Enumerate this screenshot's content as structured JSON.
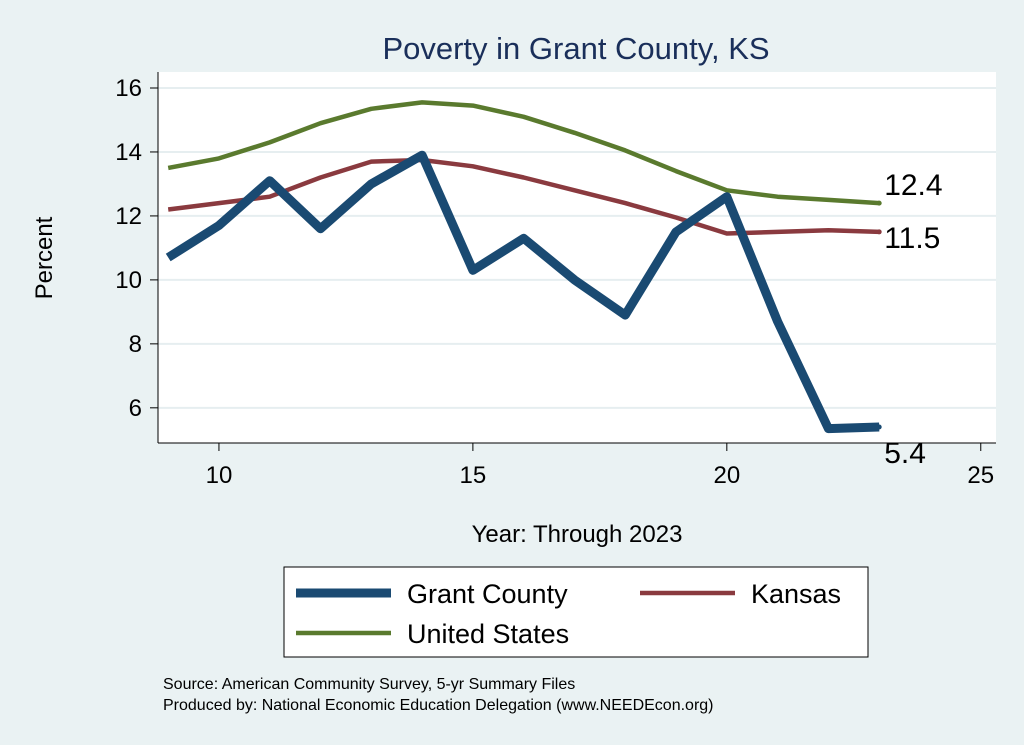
{
  "chart_data": {
    "type": "line",
    "title": "Poverty in Grant County, KS",
    "xlabel": "Year: Through 2023",
    "ylabel": "Percent",
    "xlim": [
      8.8,
      25.3
    ],
    "ylim": [
      4.9,
      16.5
    ],
    "x_ticks": [
      10,
      15,
      20,
      25
    ],
    "y_ticks": [
      6,
      8,
      10,
      12,
      14,
      16
    ],
    "grid": true,
    "legend_position": "bottom",
    "series": [
      {
        "name": "Grant County",
        "color": "#1a4a72",
        "end_label": "5.4",
        "x": [
          9,
          10,
          11,
          12,
          13,
          14,
          15,
          16,
          17,
          18,
          19,
          20,
          21,
          22,
          23
        ],
        "y": [
          10.7,
          11.7,
          13.1,
          11.6,
          13.0,
          13.9,
          10.3,
          11.3,
          10.0,
          8.9,
          11.5,
          12.6,
          8.7,
          5.35,
          5.4
        ]
      },
      {
        "name": "Kansas",
        "color": "#8a3a3f",
        "end_label": "11.5",
        "x": [
          9,
          10,
          11,
          12,
          13,
          14,
          15,
          16,
          17,
          18,
          19,
          20,
          21,
          22,
          23
        ],
        "y": [
          12.2,
          12.4,
          12.6,
          13.2,
          13.7,
          13.75,
          13.55,
          13.2,
          12.8,
          12.4,
          11.95,
          11.45,
          11.5,
          11.55,
          11.5
        ]
      },
      {
        "name": "United States",
        "color": "#5a7a2e",
        "end_label": "12.4",
        "x": [
          9,
          10,
          11,
          12,
          13,
          14,
          15,
          16,
          17,
          18,
          19,
          20,
          21,
          22,
          23
        ],
        "y": [
          13.5,
          13.8,
          14.3,
          14.9,
          15.35,
          15.55,
          15.45,
          15.1,
          14.6,
          14.05,
          13.4,
          12.8,
          12.6,
          12.5,
          12.4
        ]
      }
    ],
    "source_lines": [
      "Source: American Community Survey, 5-yr Summary Files",
      "Produced by: National Economic Education Delegation (www.NEEDEcon.org)"
    ]
  }
}
